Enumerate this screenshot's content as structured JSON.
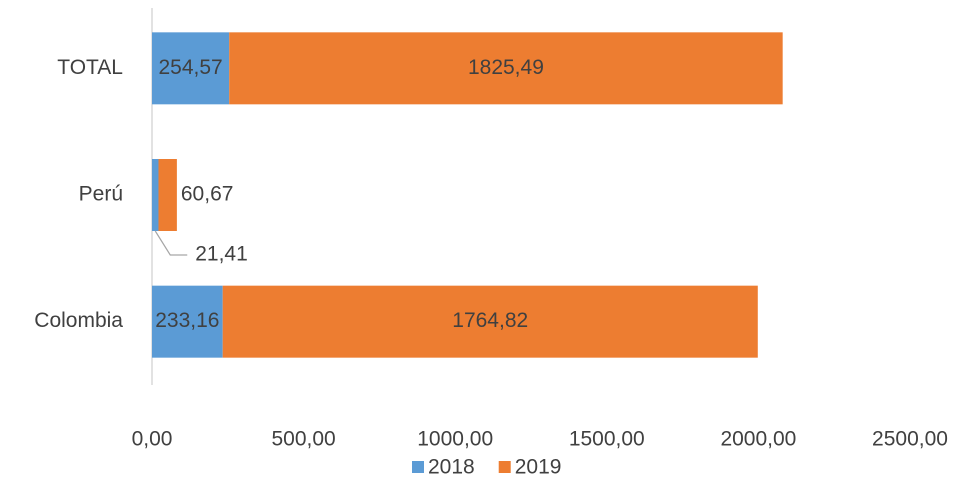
{
  "chart_data": {
    "type": "stacked_bar_horizontal",
    "categories": [
      "Colombia",
      "Perú",
      "TOTAL"
    ],
    "series": [
      {
        "name": "2018",
        "color": "#5b9bd5",
        "values": [
          233.16,
          21.41,
          254.57
        ],
        "value_labels": [
          "233,16",
          "21,41",
          "254,57"
        ]
      },
      {
        "name": "2019",
        "color": "#ed7d31",
        "values": [
          1764.82,
          60.67,
          1825.49
        ],
        "value_labels": [
          "1764,82",
          "60,67",
          "1825,49"
        ]
      }
    ],
    "xlim": [
      0,
      2500
    ],
    "xticks": [
      {
        "value": 0,
        "label": "0,00"
      },
      {
        "value": 500,
        "label": "500,00"
      },
      {
        "value": 1000,
        "label": "1000,00"
      },
      {
        "value": 1500,
        "label": "1500,00"
      },
      {
        "value": 2000,
        "label": "2000,00"
      },
      {
        "value": 2500,
        "label": "2500,00"
      }
    ],
    "legend": "bottom"
  }
}
